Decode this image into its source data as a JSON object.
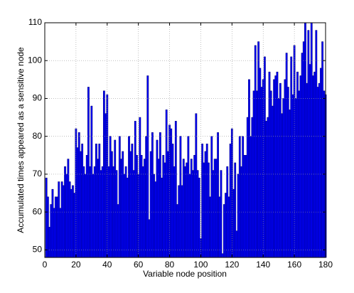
{
  "chart_data": {
    "type": "bar",
    "x_label": "Variable node position",
    "y_label": "Accumulated times appeared as a sensitive node",
    "color": "#0000ff",
    "edge_color": "#00007f",
    "grid": true,
    "xlim": [
      0,
      180
    ],
    "xticks": [
      0,
      20,
      40,
      60,
      80,
      100,
      120,
      140,
      160,
      180
    ],
    "ylim": [
      48,
      110
    ],
    "yticks": [
      50,
      60,
      70,
      80,
      90,
      100,
      110
    ],
    "x": [
      1,
      2,
      3,
      4,
      5,
      6,
      7,
      8,
      9,
      10,
      11,
      12,
      13,
      14,
      15,
      16,
      17,
      18,
      19,
      20,
      21,
      22,
      23,
      24,
      25,
      26,
      27,
      28,
      29,
      30,
      31,
      32,
      33,
      34,
      35,
      36,
      37,
      38,
      39,
      40,
      41,
      42,
      43,
      44,
      45,
      46,
      47,
      48,
      49,
      50,
      51,
      52,
      53,
      54,
      55,
      56,
      57,
      58,
      59,
      60,
      61,
      62,
      63,
      64,
      65,
      66,
      67,
      68,
      69,
      70,
      71,
      72,
      73,
      74,
      75,
      76,
      77,
      78,
      79,
      80,
      81,
      82,
      83,
      84,
      85,
      86,
      87,
      88,
      89,
      90,
      91,
      92,
      93,
      94,
      95,
      96,
      97,
      98,
      99,
      100,
      101,
      102,
      103,
      104,
      105,
      106,
      107,
      108,
      109,
      110,
      111,
      112,
      113,
      114,
      115,
      116,
      117,
      118,
      119,
      120,
      121,
      122,
      123,
      124,
      125,
      126,
      127,
      128,
      129,
      130,
      131,
      132,
      133,
      134,
      135,
      136,
      137,
      138,
      139,
      140,
      141,
      142,
      143,
      144,
      145,
      146,
      147,
      148,
      149,
      150,
      151,
      152,
      153,
      154,
      155,
      156,
      157,
      158,
      159,
      160,
      161,
      162,
      163,
      164,
      165,
      166,
      167,
      168,
      169,
      170,
      171,
      172,
      173,
      174,
      175,
      176,
      177,
      178,
      179,
      180
    ],
    "values": [
      69,
      64,
      56,
      62,
      66,
      61,
      64,
      64,
      68,
      61,
      68,
      67,
      72,
      70,
      74,
      68,
      66,
      67,
      65,
      82,
      77,
      81,
      76,
      78,
      72,
      70,
      75,
      93,
      72,
      88,
      70,
      72,
      78,
      74,
      78,
      71,
      72,
      92,
      86,
      91,
      72,
      80,
      76,
      72,
      79,
      71,
      62,
      80,
      74,
      76,
      70,
      72,
      69,
      80,
      76,
      78,
      71,
      84,
      75,
      70,
      85,
      75,
      72,
      74,
      80,
      96,
      58,
      76,
      81,
      70,
      68,
      79,
      74,
      81,
      69,
      75,
      73,
      87,
      76,
      83,
      82,
      78,
      72,
      84,
      62,
      67,
      80,
      67,
      74,
      72,
      73,
      80,
      70,
      74,
      71,
      75,
      86,
      71,
      69,
      53,
      78,
      73,
      76,
      78,
      73,
      64,
      80,
      71,
      74,
      74,
      81,
      64,
      71,
      49,
      62,
      65,
      72,
      64,
      78,
      82,
      66,
      73,
      55,
      70,
      80,
      72,
      80,
      75,
      75,
      85,
      95,
      80,
      85,
      92,
      104,
      92,
      105,
      98,
      93,
      95,
      101,
      84,
      85,
      97,
      92,
      88,
      95,
      96,
      97,
      90,
      94,
      86,
      90,
      95,
      102,
      93,
      87,
      101,
      91,
      104,
      90,
      97,
      92,
      96,
      102,
      105,
      110,
      94,
      108,
      99,
      110,
      96,
      97,
      108,
      93,
      94,
      98,
      105,
      92,
      91
    ]
  }
}
